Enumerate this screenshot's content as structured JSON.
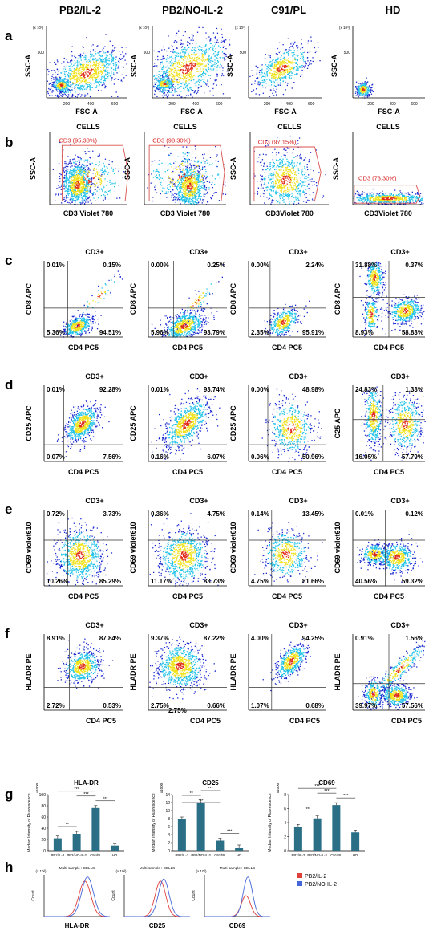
{
  "columns": [
    "PB2/IL-2",
    "PB2/NO-IL-2",
    "C91/PL",
    "HD"
  ],
  "panel_letters": [
    "a",
    "b",
    "c",
    "d",
    "e",
    "f",
    "g",
    "h"
  ],
  "colors": {
    "density_low": "#1a28d0",
    "density_mid": "#1fc2e8",
    "density_high": "#f0e21a",
    "density_peak": "#e02a1a",
    "gate": "#d9534f",
    "bar": "#2a6f86",
    "red_series": "#e0403a",
    "blue_series": "#4466d8"
  },
  "row_a": {
    "y_label": "SSC-A",
    "x_label": "FSC-A",
    "exp_label": "(x 10³)",
    "x_ticks": [
      "200",
      "400",
      "600"
    ],
    "y_ticks": [
      "500"
    ]
  },
  "row_b": {
    "title": "CELLS",
    "y_label": "SSC-A",
    "x_labels": [
      "CD3 Violet 780",
      "CD3 Violet 780",
      "CD3Violet 780",
      "CD3Violet 780"
    ],
    "gates": [
      "CD3 (95.38%)",
      "CD3 (98.30%)",
      "CD3 (97.15%)",
      "CD3 (73.30%)"
    ]
  },
  "row_c": {
    "title": "CD3+",
    "y_label": "CD8 APC",
    "x_label": "CD4 PC5",
    "quadrants": [
      [
        "0.01%",
        "0.15%",
        "5.36%",
        "94.51%"
      ],
      [
        "0.00%",
        "0.25%",
        "5.96%",
        "93.79%"
      ],
      [
        "0.00%",
        "2.24%",
        "2.35%",
        "95.91%"
      ],
      [
        "31.88%",
        "0.37%",
        "8.93%",
        "58.83%"
      ]
    ]
  },
  "row_d": {
    "title": "CD3+",
    "y_labels": [
      "CD25 APC",
      "CD25 APC",
      "CD25 APC",
      "C25 APC"
    ],
    "x_label": "CD4 PC5",
    "quadrants": [
      [
        "0.01%",
        "92.28%",
        "0.07%",
        "7.56%"
      ],
      [
        "0.01%",
        "93.74%",
        "0.16%",
        "6.07%"
      ],
      [
        "0.00%",
        "48.98%",
        "0.06%",
        "50.96%"
      ],
      [
        "24.83%",
        "1.33%",
        "16.05%",
        "57.79%"
      ]
    ]
  },
  "row_e": {
    "title": "CD3+",
    "y_label": "CD69 violet610",
    "x_label": "CD4 PC5",
    "quadrants": [
      [
        "0.72%",
        "3.73%",
        "10.26%",
        "85.29%"
      ],
      [
        "0.36%",
        "4.75%",
        "11.17%",
        "83.73%"
      ],
      [
        "0.14%",
        "13.45%",
        "4.75%",
        "81.66%"
      ],
      [
        "0.01%",
        "0.12%",
        "40.56%",
        "59.32%"
      ]
    ]
  },
  "row_f": {
    "title": "CD3+",
    "y_label": "HLADR PE",
    "x_label": "CD4 PC5",
    "quadrants": [
      [
        "8.91%",
        "87.84%",
        "2.72%",
        "0.53%"
      ],
      [
        "9.37%",
        "87.22%",
        "2.75%",
        "0.66%"
      ],
      [
        "4.00%",
        "94.25%",
        "1.07%",
        "0.68%"
      ],
      [
        "0.91%",
        "1.56%",
        "39.97%",
        "57.56%"
      ]
    ],
    "extra": "2.75%"
  },
  "row_g": {
    "y_label": "Median Intensity of Fluorescence",
    "sig": [
      "**",
      "***",
      "***",
      "***"
    ],
    "charts": [
      {
        "title": "HLA-DR",
        "exp": "x1000",
        "ticks": [
          "0",
          "20",
          "40",
          "60",
          "80",
          "100"
        ],
        "ymax": 100,
        "categories": [
          "PB2/IL-2",
          "PB2/NO-IL-2",
          "C91/PL",
          "HD"
        ],
        "values": [
          22,
          30,
          76,
          9
        ]
      },
      {
        "title": "CD25",
        "exp": "x1000",
        "ticks": [
          "0",
          "2",
          "4",
          "6",
          "8",
          "10",
          "12",
          "14"
        ],
        "ymax": 14,
        "categories": [
          "PB2/IL-2",
          "PB2/NO-IL-2",
          "C91/PL",
          "HD"
        ],
        "values": [
          7.8,
          12.0,
          2.5,
          0.8
        ]
      },
      {
        "title": "CD69",
        "exp": "x1000",
        "ticks": [
          "0",
          "2",
          "4",
          "6",
          "8"
        ],
        "ymax": 8,
        "categories": [
          "PB2/IL-2",
          "PB2/NO-IL-2",
          "C91/PL",
          "HD"
        ],
        "values": [
          3.4,
          4.6,
          6.5,
          2.6
        ]
      }
    ]
  },
  "row_h": {
    "header": "Multi-sample : CELLS",
    "y_label": "Count",
    "exp_label": "(x 10²)",
    "x_labels": [
      "HLA-DR",
      "CD25",
      "CD69"
    ],
    "legend": [
      "PB2/IL-2",
      "PB2/NO-IL-2"
    ]
  }
}
